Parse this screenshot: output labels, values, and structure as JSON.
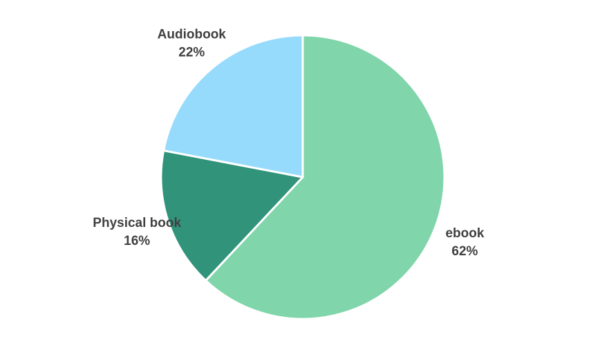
{
  "chart_data": {
    "type": "pie",
    "title": "",
    "start_angle_deg": 0,
    "direction": "clockwise",
    "legend": "none",
    "slices": [
      {
        "label": "ebook",
        "value": 62,
        "value_label": "62%",
        "color": "#80d5aa"
      },
      {
        "label": "Physical book",
        "value": 16,
        "value_label": "16%",
        "color": "#30937a"
      },
      {
        "label": "Audiobook",
        "value": 22,
        "value_label": "22%",
        "color": "#97dbfc"
      }
    ]
  }
}
